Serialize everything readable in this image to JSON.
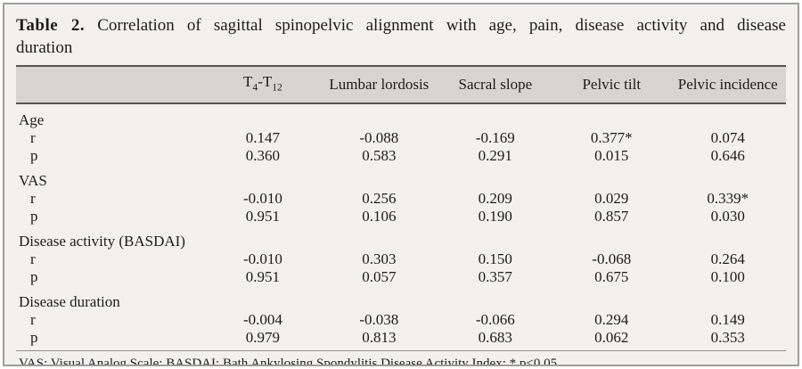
{
  "title": {
    "label": "Table 2.",
    "line1": "Correlation of sagittal spinopelvic alignment with age, pain, disease activity and disease",
    "line2": "duration"
  },
  "table": {
    "header": {
      "col1": {
        "b1": "T",
        "s1": "4",
        "b2": "-T",
        "s2": "12"
      },
      "col2": "Lumbar lordosis",
      "col3": "Sacral slope",
      "col4": "Pelvic tilt",
      "col5": "Pelvic incidence"
    },
    "row_labels": {
      "r": "r",
      "p": "p"
    },
    "sections": [
      {
        "label": "Age",
        "r": [
          "0.147",
          "-0.088",
          "-0.169",
          "0.377*",
          "0.074"
        ],
        "p": [
          "0.360",
          "0.583",
          "0.291",
          "0.015",
          "0.646"
        ]
      },
      {
        "label": "VAS",
        "r": [
          "-0.010",
          "0.256",
          "0.209",
          "0.029",
          "0.339*"
        ],
        "p": [
          "0.951",
          "0.106",
          "0.190",
          "0.857",
          "0.030"
        ]
      },
      {
        "label": "Disease activity (BASDAI)",
        "r": [
          "-0.010",
          "0.303",
          "0.150",
          "-0.068",
          "0.264"
        ],
        "p": [
          "0.951",
          "0.057",
          "0.357",
          "0.675",
          "0.100"
        ]
      },
      {
        "label": "Disease duration",
        "r": [
          "-0.004",
          "-0.038",
          "-0.066",
          "0.294",
          "0.149"
        ],
        "p": [
          "0.979",
          "0.813",
          "0.683",
          "0.062",
          "0.353"
        ]
      }
    ]
  },
  "footnote": "VAS: Visual Analog Scale; BASDAI: Bath Ankylosing Spondylitis Disease Activity Index; * p<0.05.",
  "colors": {
    "page_bg": "#f2f1ef",
    "header_band_bg": "#d6d5d3",
    "rule_dark": "#565656",
    "rule_light": "#8f8f8f",
    "outer_border": "#9e9e9e",
    "text": "#1c1c1c"
  }
}
